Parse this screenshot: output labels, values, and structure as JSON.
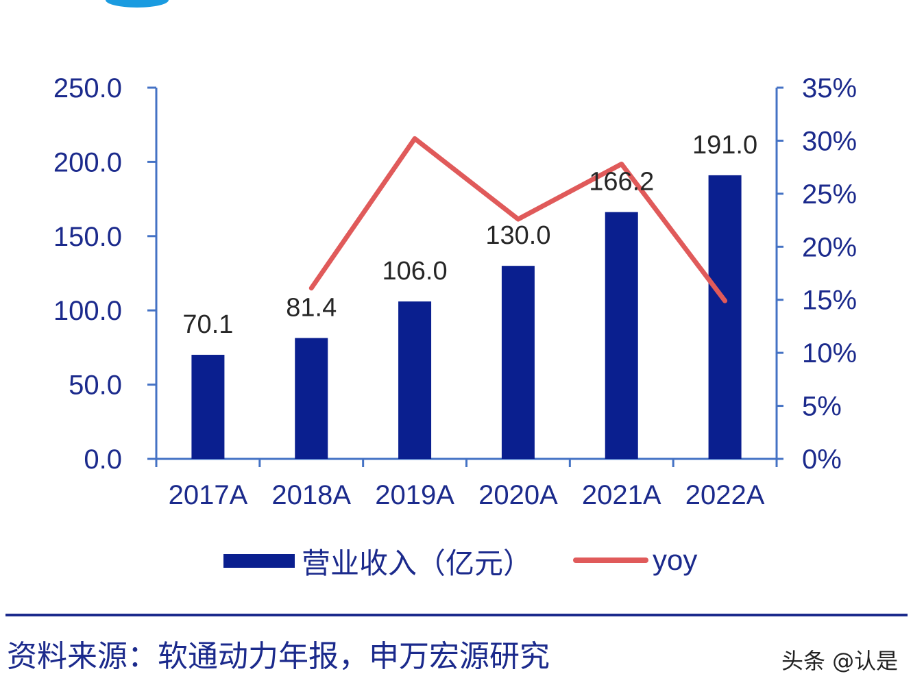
{
  "chart_data": {
    "type": "bar+line",
    "categories": [
      "2017A",
      "2018A",
      "2019A",
      "2020A",
      "2021A",
      "2022A"
    ],
    "series": [
      {
        "name": "营业收入（亿元）",
        "type": "bar",
        "axis": "left",
        "values": [
          70.1,
          81.4,
          106.0,
          130.0,
          166.2,
          191.0
        ],
        "labels": [
          "70.1",
          "81.4",
          "106.0",
          "130.0",
          "166.2",
          "191.0"
        ],
        "color": "#0a1f8f"
      },
      {
        "name": "yoy",
        "type": "line",
        "axis": "right",
        "values": [
          null,
          16.1,
          30.2,
          22.6,
          27.8,
          14.9
        ],
        "color": "#e05a5a"
      }
    ],
    "y_left": {
      "range": [
        0,
        250
      ],
      "ticks": [
        "0.0",
        "50.0",
        "100.0",
        "150.0",
        "200.0",
        "250.0"
      ]
    },
    "y_right": {
      "range": [
        0,
        35
      ],
      "unit": "%",
      "ticks": [
        "0%",
        "5%",
        "10%",
        "15%",
        "20%",
        "25%",
        "30%",
        "35%"
      ]
    },
    "grid": false,
    "legend": "bottom",
    "axis_color": "#4472c4"
  },
  "source": "资料来源：软通动力年报，申万宏源研究",
  "watermark": "头条 @认是"
}
